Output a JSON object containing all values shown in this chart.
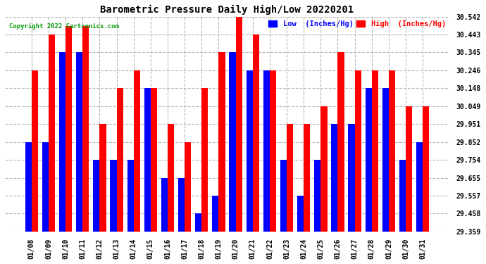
{
  "title": "Barometric Pressure Daily High/Low 20220201",
  "copyright": "Copyright 2022 Cartronics.com",
  "dates": [
    "01/08",
    "01/09",
    "01/10",
    "01/11",
    "01/12",
    "01/13",
    "01/14",
    "01/15",
    "01/16",
    "01/17",
    "01/18",
    "01/19",
    "01/20",
    "01/21",
    "01/22",
    "01/23",
    "01/24",
    "01/25",
    "01/26",
    "01/27",
    "01/28",
    "01/29",
    "01/30",
    "01/31"
  ],
  "high": [
    30.246,
    30.443,
    30.492,
    30.492,
    29.951,
    30.148,
    30.246,
    30.148,
    29.951,
    29.852,
    30.148,
    30.345,
    30.542,
    30.443,
    30.246,
    29.951,
    29.951,
    30.049,
    30.345,
    30.246,
    30.246,
    30.246,
    30.049,
    30.049
  ],
  "low": [
    29.852,
    29.852,
    30.345,
    30.345,
    29.754,
    29.754,
    29.754,
    30.148,
    29.655,
    29.655,
    29.458,
    29.557,
    30.345,
    30.246,
    30.246,
    29.754,
    29.557,
    29.754,
    29.951,
    29.951,
    30.148,
    30.148,
    29.754,
    29.852
  ],
  "ymin": 29.359,
  "ymax": 30.542,
  "yticks": [
    29.359,
    29.458,
    29.557,
    29.655,
    29.754,
    29.852,
    29.951,
    30.049,
    30.148,
    30.246,
    30.345,
    30.443,
    30.542
  ],
  "high_color": "#ff0000",
  "low_color": "#0000ff",
  "bg_color": "#ffffff",
  "grid_color": "#b0b0b0",
  "title_color": "#000000",
  "copyright_color": "#009900",
  "legend_low_label": "Low  (Inches/Hg)",
  "legend_high_label": "High  (Inches/Hg)",
  "figwidth": 6.9,
  "figheight": 3.75,
  "dpi": 100
}
